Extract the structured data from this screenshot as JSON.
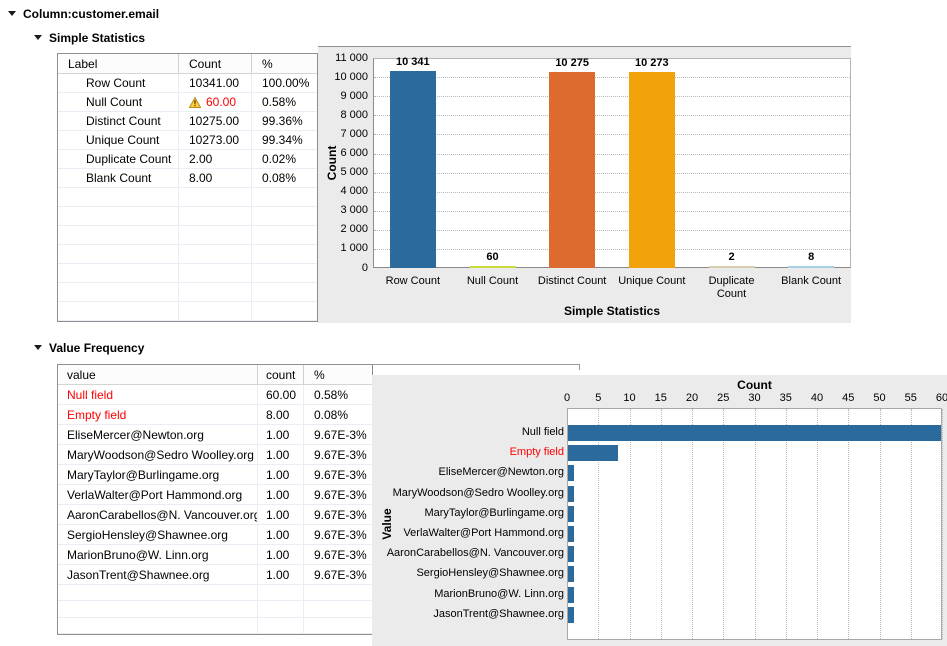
{
  "header": {
    "title": "Column:customer.email"
  },
  "simple_statistics": {
    "title": "Simple Statistics",
    "table": {
      "headers": [
        "Label",
        "Count",
        "%"
      ],
      "rows": [
        {
          "label": "Row Count",
          "count": "10341.00",
          "pct": "100.00%",
          "warning": false,
          "count_red": false
        },
        {
          "label": "Null Count",
          "count": "60.00",
          "pct": "0.58%",
          "warning": true,
          "count_red": true
        },
        {
          "label": "Distinct Count",
          "count": "10275.00",
          "pct": "99.36%",
          "warning": false,
          "count_red": false
        },
        {
          "label": "Unique Count",
          "count": "10273.00",
          "pct": "99.34%",
          "warning": false,
          "count_red": false
        },
        {
          "label": "Duplicate Count",
          "count": "2.00",
          "pct": "0.02%",
          "warning": false,
          "count_red": false
        },
        {
          "label": "Blank Count",
          "count": "8.00",
          "pct": "0.08%",
          "warning": false,
          "count_red": false
        }
      ],
      "empty_rows": 7
    }
  },
  "value_frequency": {
    "title": "Value Frequency",
    "table": {
      "headers": [
        "value",
        "count",
        "%"
      ],
      "rows": [
        {
          "value": "Null field",
          "count": "60.00",
          "pct": "0.58%",
          "value_red": true
        },
        {
          "value": "Empty field",
          "count": "8.00",
          "pct": "0.08%",
          "value_red": true
        },
        {
          "value": "EliseMercer@Newton.org",
          "count": "1.00",
          "pct": "9.67E-3%",
          "value_red": false
        },
        {
          "value": "MaryWoodson@Sedro Woolley.org",
          "count": "1.00",
          "pct": "9.67E-3%",
          "value_red": false
        },
        {
          "value": "MaryTaylor@Burlingame.org",
          "count": "1.00",
          "pct": "9.67E-3%",
          "value_red": false
        },
        {
          "value": "VerlaWalter@Port Hammond.org",
          "count": "1.00",
          "pct": "9.67E-3%",
          "value_red": false
        },
        {
          "value": "AaronCarabellos@N. Vancouver.org",
          "count": "1.00",
          "pct": "9.67E-3%",
          "value_red": false
        },
        {
          "value": "SergioHensley@Shawnee.org",
          "count": "1.00",
          "pct": "9.67E-3%",
          "value_red": false
        },
        {
          "value": "MarionBruno@W. Linn.org",
          "count": "1.00",
          "pct": "9.67E-3%",
          "value_red": false
        },
        {
          "value": "JasonTrent@Shawnee.org",
          "count": "1.00",
          "pct": "9.67E-3%",
          "value_red": false
        }
      ],
      "empty_rows": 3
    }
  },
  "chart_data": [
    {
      "type": "bar",
      "title": "",
      "xlabel": "Simple Statistics",
      "ylabel": "Count",
      "categories": [
        "Row Count",
        "Null Count",
        "Distinct Count",
        "Unique Count",
        "Duplicate Count",
        "Blank Count"
      ],
      "values": [
        10341,
        60,
        10275,
        10273,
        2,
        8
      ],
      "bar_labels": [
        "10 341",
        "60",
        "10 275",
        "10 273",
        "2",
        "8"
      ],
      "bar_colors": [
        "#2b6a9d",
        "#cdda3b",
        "#dd6b2f",
        "#f2a30b",
        "#d5cdab",
        "#a9cfe5"
      ],
      "ylim": [
        0,
        11000
      ],
      "ytick_labels": [
        "11 000",
        "10 000",
        "9 000",
        "8 000",
        "7 000",
        "6 000",
        "5 000",
        "4 000",
        "3 000",
        "2 000",
        "1 000",
        "0"
      ],
      "grid": "horizontal-dotted",
      "legend": "none"
    },
    {
      "type": "bar-horizontal",
      "title": "Count",
      "ylabel": "Value",
      "categories": [
        "Null field",
        "Empty field",
        "EliseMercer@Newton.org",
        "MaryWoodson@Sedro Woolley.org",
        "MaryTaylor@Burlingame.org",
        "VerlaWalter@Port Hammond.org",
        "AaronCarabellos@N. Vancouver.org",
        "SergioHensley@Shawnee.org",
        "MarionBruno@W. Linn.org",
        "JasonTrent@Shawnee.org"
      ],
      "category_label_colors": [
        "#000000",
        "#ff0000",
        "#000000",
        "#000000",
        "#000000",
        "#000000",
        "#000000",
        "#000000",
        "#000000",
        "#000000"
      ],
      "values": [
        60,
        8,
        1,
        1,
        1,
        1,
        1,
        1,
        1,
        1
      ],
      "bar_color": "#2b6a9d",
      "xlim": [
        0,
        60
      ],
      "xtick_labels": [
        "0",
        "5",
        "10",
        "15",
        "20",
        "25",
        "30",
        "35",
        "40",
        "45",
        "50",
        "55",
        "60"
      ],
      "grid": "vertical-dotted",
      "legend": "none"
    }
  ],
  "colors": {
    "bar_blue": "#2b6a9d",
    "bar_orange": "#dd6b2f",
    "bar_amber": "#f2a30b",
    "bar_yellow_green": "#cdda3b",
    "bar_tan": "#d5cdab",
    "bar_light_blue": "#a9cfe5",
    "alert_red": "#ff0000",
    "chart_panel_bg": "#ebebeb"
  }
}
